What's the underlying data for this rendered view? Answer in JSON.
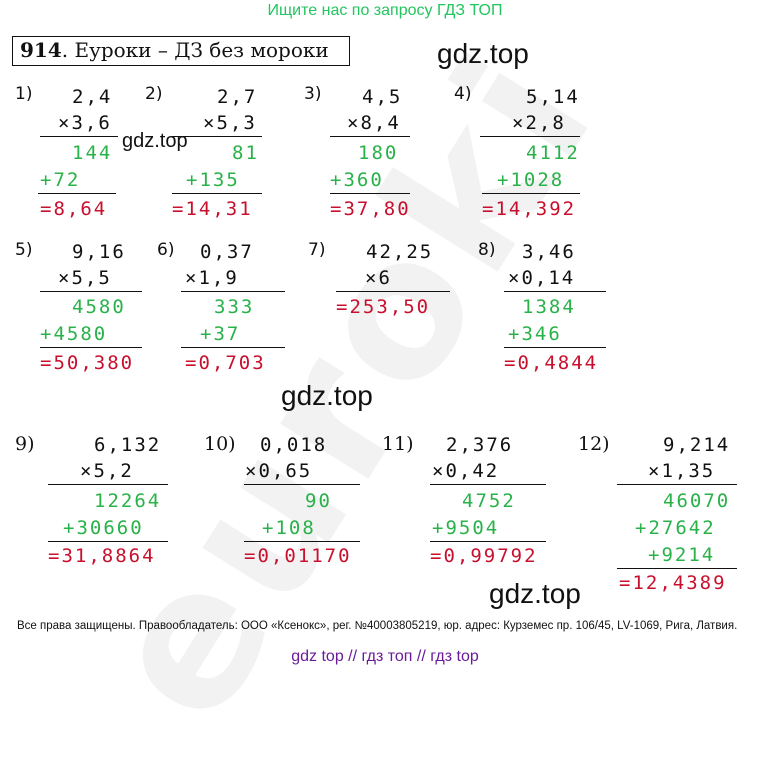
{
  "banner": "Ищите нас по запросу ГДЗ ТОП",
  "title": {
    "num": "914",
    "text": ". Еуроки  –  ДЗ без мороки"
  },
  "watermark": "gdz.top",
  "bg_watermark": "euroki",
  "problems": [
    {
      "n": "1)",
      "a": "2,4",
      "b": "×3,6",
      "p1": "144",
      "p2": "+72",
      "p3": null,
      "res": "=8,64"
    },
    {
      "n": "2)",
      "a": "2,7",
      "b": "×5,3",
      "p1": "81",
      "p2": "+135",
      "p3": null,
      "res": "=14,31"
    },
    {
      "n": "3)",
      "a": "4,5",
      "b": "×8,4",
      "p1": "180",
      "p2": "+360",
      "p3": null,
      "res": "=37,80"
    },
    {
      "n": "4)",
      "a": "5,14",
      "b": "×2,8",
      "p1": "4112",
      "p2": "+1028",
      "p3": null,
      "res": "=14,392"
    },
    {
      "n": "5)",
      "a": "9,16",
      "b": "×5,5",
      "p1": "4580",
      "p2": "+4580",
      "p3": null,
      "res": "=50,380"
    },
    {
      "n": "6)",
      "a": "0,37",
      "b": "×1,9",
      "p1": "333",
      "p2": "+37",
      "p3": null,
      "res": "=0,703"
    },
    {
      "n": "7)",
      "a": "42,25",
      "b": "×6",
      "p1": null,
      "p2": null,
      "p3": null,
      "res": "=253,50"
    },
    {
      "n": "8)",
      "a": "3,46",
      "b": "×0,14",
      "p1": "1384",
      "p2": "+346",
      "p3": null,
      "res": "=0,4844"
    },
    {
      "n": "9)",
      "a": "6,132",
      "b": "×5,2",
      "p1": "12264",
      "p2": "+30660",
      "p3": null,
      "res": "=31,8864"
    },
    {
      "n": "10)",
      "a": "0,018",
      "b": "×0,65",
      "p1": "90",
      "p2": "+108",
      "p3": null,
      "res": "=0,01170"
    },
    {
      "n": "11)",
      "a": "2,376",
      "b": "×0,42",
      "p1": "4752",
      "p2": "+9504",
      "p3": null,
      "res": "=0,99792"
    },
    {
      "n": "12)",
      "a": "9,214",
      "b": "×1,35",
      "p1": "46070",
      "p2": "+27642",
      "p3": "+9214",
      "res": "=12,4389"
    }
  ],
  "footer": "Все права защищены. Правообладатель: ООО «Ксенокс», рег. №40003805219, юр. адрес: Курземес пр. 106/45, LV-1069, Рига, Латвия.",
  "links": [
    "gdz top",
    "гдз топ",
    "гдз top"
  ],
  "link_sep": "//",
  "colors": {
    "green": "#2ab24a",
    "red": "#c8102e",
    "banner": "#22c55e",
    "links": "#6a1b9a"
  }
}
